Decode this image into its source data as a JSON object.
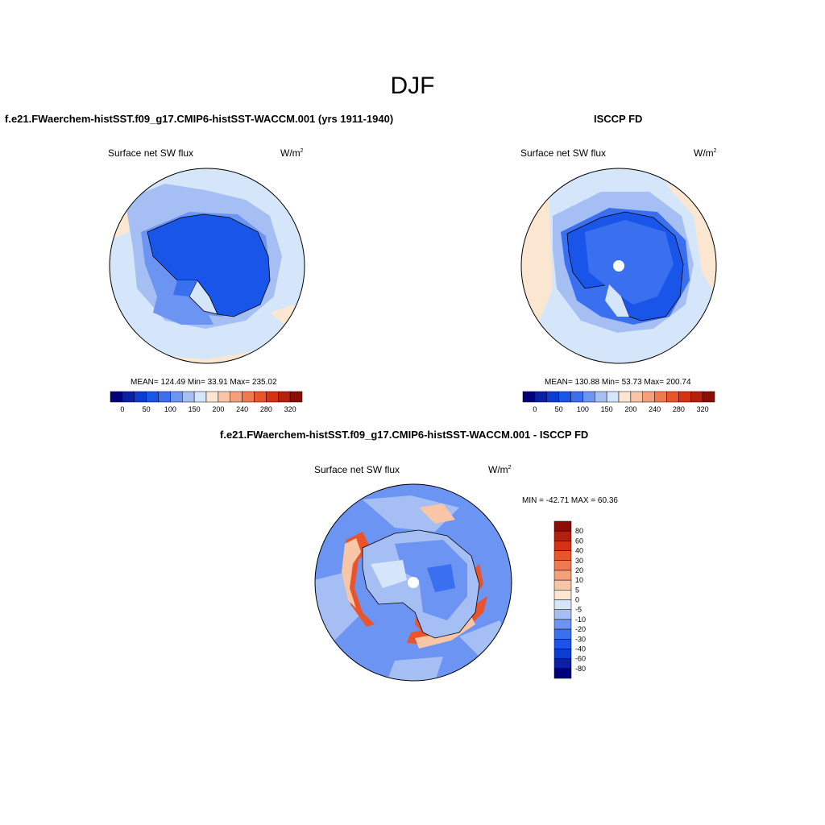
{
  "title": "DJF",
  "panels": [
    {
      "case_title": "f.e21.FWaerchem-histSST.f09_g17.CMIP6-histSST-WACCM.001 (yrs 1911-1940)",
      "variable": "Surface net SW flux",
      "units_base": "W/m",
      "units_exp": "2",
      "stats": "MEAN= 124.49  Min=  33.91  Max= 235.02"
    },
    {
      "case_title": "ISCCP FD",
      "variable": "Surface net SW flux",
      "units_base": "W/m",
      "units_exp": "2",
      "stats": "MEAN= 130.88  Min=  53.73  Max= 200.74"
    },
    {
      "case_title": "f.e21.FWaerchem-histSST.f09_g17.CMIP6-histSST-WACCM.001 - ISCCP FD",
      "variable": "Surface net SW flux",
      "units_base": "W/m",
      "units_exp": "2",
      "stats": "MIN = -42.71 MAX =  60.36"
    }
  ],
  "colorbar_main": {
    "colors": [
      "#00007a",
      "#0a1fa8",
      "#0b3ed0",
      "#1955e8",
      "#3a6ff0",
      "#6c94f2",
      "#a5bff5",
      "#d6e6fa",
      "#fbe6d2",
      "#f8c6a6",
      "#f5a07a",
      "#f07a50",
      "#e9542a",
      "#d53214",
      "#b3200c",
      "#8a0e06"
    ],
    "tick_labels": [
      "0",
      "50",
      "100",
      "150",
      "200",
      "240",
      "280",
      "320"
    ]
  },
  "colorbar_diff": {
    "colors": [
      "#8a0e06",
      "#b3200c",
      "#d53214",
      "#e9542a",
      "#f07a50",
      "#f5a07a",
      "#f8c6a6",
      "#fbe6d2",
      "#d6e6fa",
      "#a5bff5",
      "#6c94f2",
      "#3a6ff0",
      "#1955e8",
      "#0b3ed0",
      "#0a1fa8",
      "#00007a"
    ],
    "tick_labels": [
      "80",
      "60",
      "40",
      "30",
      "20",
      "10",
      "5",
      "0",
      "-5",
      "-10",
      "-20",
      "-30",
      "-40",
      "-60",
      "-80"
    ]
  },
  "map_fill": {
    "ocean_main": "#d6e6fa",
    "ocean_diff": "#6c94f2",
    "warm": "#fbe6d2",
    "mid_blue": "#a5bff5",
    "ice_dark": "#1955e8",
    "ice_light": "#3a6ff0",
    "red": "#e9542a",
    "light_red": "#f8c6a6"
  }
}
